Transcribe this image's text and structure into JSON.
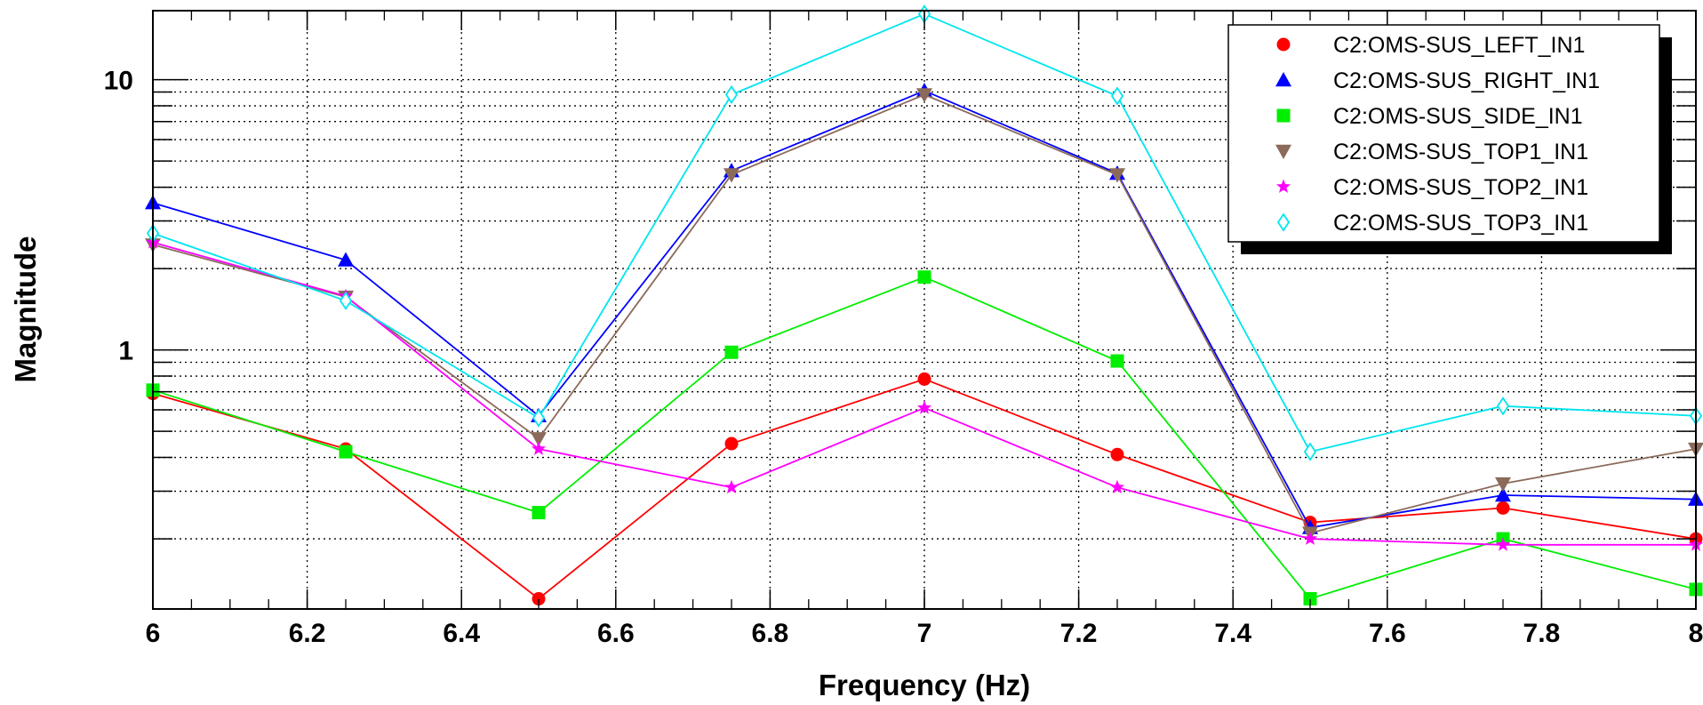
{
  "chart_data": {
    "type": "line",
    "title": "",
    "xlabel": "Frequency (Hz)",
    "ylabel": "Magnitude",
    "xlim": [
      6,
      8
    ],
    "ylim": [
      0.11,
      18
    ],
    "yscale": "log",
    "grid": true,
    "legend_position": "top-right",
    "x_ticks": [
      "6",
      "6.2",
      "6.4",
      "6.6",
      "6.8",
      "7",
      "7.2",
      "7.4",
      "7.6",
      "7.8",
      "8"
    ],
    "y_ticks": [
      "1",
      "10"
    ],
    "x": [
      6,
      6.25,
      6.5,
      6.75,
      7,
      7.25,
      7.5,
      7.75,
      8
    ],
    "series": [
      {
        "name": "C2:OMS-SUS_LEFT_IN1",
        "color": "#ff0000",
        "marker": "circle",
        "values": [
          0.69,
          0.43,
          0.12,
          0.45,
          0.78,
          0.41,
          0.23,
          0.26,
          0.2
        ]
      },
      {
        "name": "C2:OMS-SUS_RIGHT_IN1",
        "color": "#0000ff",
        "marker": "triangle-up",
        "values": [
          3.5,
          2.15,
          0.57,
          4.6,
          9.1,
          4.5,
          0.22,
          0.29,
          0.28
        ]
      },
      {
        "name": "C2:OMS-SUS_SIDE_IN1",
        "color": "#00ee00",
        "marker": "square",
        "values": [
          0.71,
          0.42,
          0.25,
          0.98,
          1.86,
          0.91,
          0.12,
          0.2,
          0.13
        ]
      },
      {
        "name": "C2:OMS-SUS_TOP1_IN1",
        "color": "#8b6a5a",
        "marker": "triangle-down",
        "values": [
          2.45,
          1.57,
          0.47,
          4.45,
          8.8,
          4.45,
          0.21,
          0.32,
          0.43
        ]
      },
      {
        "name": "C2:OMS-SUS_TOP2_IN1",
        "color": "#ff00ff",
        "marker": "star",
        "values": [
          2.5,
          1.58,
          0.43,
          0.31,
          0.61,
          0.31,
          0.2,
          0.19,
          0.19
        ]
      },
      {
        "name": "C2:OMS-SUS_TOP3_IN1",
        "color": "#00e5ee",
        "marker": "diamond-open",
        "values": [
          2.7,
          1.52,
          0.56,
          8.8,
          17.5,
          8.7,
          0.42,
          0.62,
          0.57
        ]
      }
    ]
  }
}
